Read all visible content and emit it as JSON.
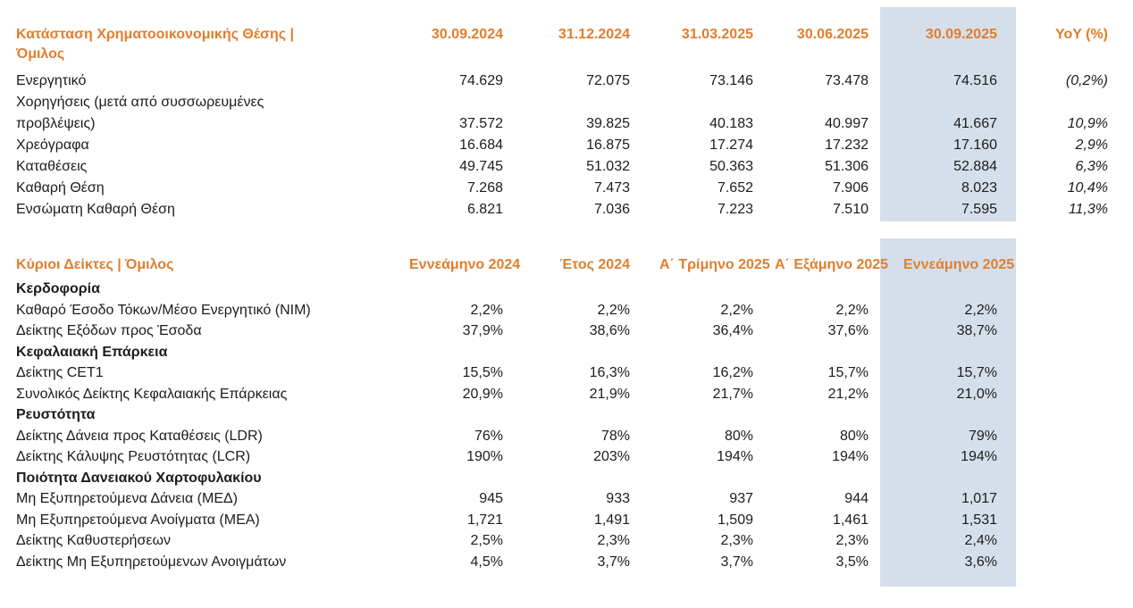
{
  "colors": {
    "accent_orange": "#E07E2E",
    "highlight_band": "#D5DFEB",
    "text": "#1C1C1C"
  },
  "financial_position": {
    "title": "Κατάσταση Χρηματοοικονομικής Θέσης | Όμιλος",
    "columns": [
      "30.09.2024",
      "31.12.2024",
      "31.03.2025",
      "30.06.2025",
      "30.09.2025",
      "YoY (%)"
    ],
    "highlighted_column": "30.09.2025",
    "rows": [
      {
        "label": "Ενεργητικό",
        "values": [
          "74.629",
          "72.075",
          "73.146",
          "73.478",
          "74.516"
        ],
        "yoy": "(0,2%)"
      },
      {
        "label": "Χορηγήσεις (μετά από συσσωρευμένες προβλέψεις)",
        "values": [
          "37.572",
          "39.825",
          "40.183",
          "40.997",
          "41.667"
        ],
        "yoy": "10,9%"
      },
      {
        "label": "Χρεόγραφα",
        "values": [
          "16.684",
          "16.875",
          "17.274",
          "17.232",
          "17.160"
        ],
        "yoy": "2,9%"
      },
      {
        "label": "Καταθέσεις",
        "values": [
          "49.745",
          "51.032",
          "50.363",
          "51.306",
          "52.884"
        ],
        "yoy": "6,3%"
      },
      {
        "label": "Καθαρή Θέση",
        "values": [
          "7.268",
          "7.473",
          "7.652",
          "7.906",
          "8.023"
        ],
        "yoy": "10,4%"
      },
      {
        "label": "Ενσώματη Καθαρή Θέση",
        "values": [
          "6.821",
          "7.036",
          "7.223",
          "7.510",
          "7.595"
        ],
        "yoy": "11,3%"
      }
    ]
  },
  "key_ratios": {
    "title": "Κύριοι Δείκτες | Όμιλος",
    "columns": [
      "Εννεάμηνο 2024",
      "Έτος 2024",
      "Α΄ Τρίμηνο 2025",
      "Α΄ Εξάμηνο 2025",
      "Εννεάμηνο 2025"
    ],
    "highlighted_column": "Εννεάμηνο 2025",
    "rows": [
      {
        "type": "section",
        "label": "Κερδοφορία"
      },
      {
        "type": "data",
        "label": "Καθαρό Έσοδο Τόκων/Μέσο Ενεργητικό (ΝΙΜ)",
        "values": [
          "2,2%",
          "2,2%",
          "2,2%",
          "2,2%",
          "2,2%"
        ]
      },
      {
        "type": "data",
        "label": "Δείκτης Εξόδων προς Έσοδα",
        "values": [
          "37,9%",
          "38,6%",
          "36,4%",
          "37,6%",
          "38,7%"
        ]
      },
      {
        "type": "section",
        "label": "Κεφαλαιακή Επάρκεια"
      },
      {
        "type": "data",
        "label": "Δείκτης CET1",
        "values": [
          "15,5%",
          "16,3%",
          "16,2%",
          "15,7%",
          "15,7%"
        ]
      },
      {
        "type": "data",
        "label": "Συνολικός Δείκτης Κεφαλαιακής Επάρκειας",
        "values": [
          "20,9%",
          "21,9%",
          "21,7%",
          "21,2%",
          "21,0%"
        ]
      },
      {
        "type": "section",
        "label": "Ρευστότητα"
      },
      {
        "type": "data",
        "label": "Δείκτης Δάνεια προς Καταθέσεις (LDR)",
        "values": [
          "76%",
          "78%",
          "80%",
          "80%",
          "79%"
        ]
      },
      {
        "type": "data",
        "label": "Δείκτης Κάλυψης Ρευστότητας (LCR)",
        "values": [
          "190%",
          "203%",
          "194%",
          "194%",
          "194%"
        ]
      },
      {
        "type": "section",
        "label": "Ποιότητα Δανειακού Χαρτοφυλακίου"
      },
      {
        "type": "data",
        "label": "Μη Εξυπηρετούμενα Δάνεια (ΜΕΔ)",
        "values": [
          "945",
          "933",
          "937",
          "944",
          "1,017"
        ]
      },
      {
        "type": "data",
        "label": "Μη Εξυπηρετούμενα Ανοίγματα (ΜΕΑ)",
        "values": [
          "1,721",
          "1,491",
          "1,509",
          "1,461",
          "1,531"
        ]
      },
      {
        "type": "data",
        "label": "Δείκτης Καθυστερήσεων",
        "values": [
          "2,5%",
          "2,3%",
          "2,3%",
          "2,3%",
          "2,4%"
        ]
      },
      {
        "type": "data",
        "label": "Δείκτης Μη Εξυπηρετούμενων Ανοιγμάτων",
        "values": [
          "4,5%",
          "3,7%",
          "3,7%",
          "3,5%",
          "3,6%"
        ]
      }
    ]
  }
}
